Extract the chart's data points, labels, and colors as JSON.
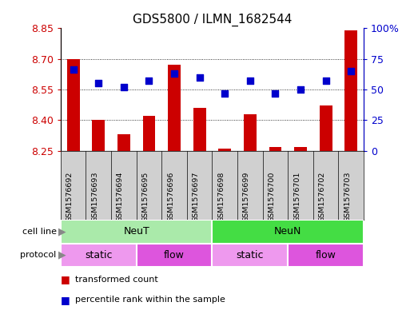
{
  "title": "GDS5800 / ILMN_1682544",
  "samples": [
    "GSM1576692",
    "GSM1576693",
    "GSM1576694",
    "GSM1576695",
    "GSM1576696",
    "GSM1576697",
    "GSM1576698",
    "GSM1576699",
    "GSM1576700",
    "GSM1576701",
    "GSM1576702",
    "GSM1576703"
  ],
  "transformed_count": [
    8.7,
    8.4,
    8.33,
    8.42,
    8.67,
    8.46,
    8.26,
    8.43,
    8.27,
    8.27,
    8.47,
    8.84
  ],
  "percentile_rank": [
    66,
    55,
    52,
    57,
    63,
    60,
    47,
    57,
    47,
    50,
    57,
    65
  ],
  "ylim_left": [
    8.25,
    8.85
  ],
  "ylim_right": [
    0,
    100
  ],
  "yticks_left": [
    8.25,
    8.4,
    8.55,
    8.7,
    8.85
  ],
  "yticks_right": [
    0,
    25,
    50,
    75,
    100
  ],
  "ytick_labels_right": [
    "0",
    "25",
    "50",
    "75",
    "100%"
  ],
  "bar_color": "#cc0000",
  "dot_color": "#0000cc",
  "bar_bottom": 8.25,
  "cell_line_groups": [
    {
      "label": "NeuT",
      "start": 0,
      "end": 6,
      "color": "#aaeaaa"
    },
    {
      "label": "NeuN",
      "start": 6,
      "end": 12,
      "color": "#44dd44"
    }
  ],
  "protocol_groups": [
    {
      "label": "static",
      "start": 0,
      "end": 3,
      "color": "#ee99ee"
    },
    {
      "label": "flow",
      "start": 3,
      "end": 6,
      "color": "#dd55dd"
    },
    {
      "label": "static",
      "start": 6,
      "end": 9,
      "color": "#ee99ee"
    },
    {
      "label": "flow",
      "start": 9,
      "end": 12,
      "color": "#dd55dd"
    }
  ],
  "legend_items": [
    {
      "label": "transformed count",
      "color": "#cc0000"
    },
    {
      "label": "percentile rank within the sample",
      "color": "#0000cc"
    }
  ],
  "background_color": "#ffffff",
  "tick_label_color_left": "#cc0000",
  "tick_label_color_right": "#0000cc",
  "title_fontsize": 11,
  "dot_size": 35,
  "bar_width": 0.5,
  "sample_label_bg": "#d0d0d0"
}
